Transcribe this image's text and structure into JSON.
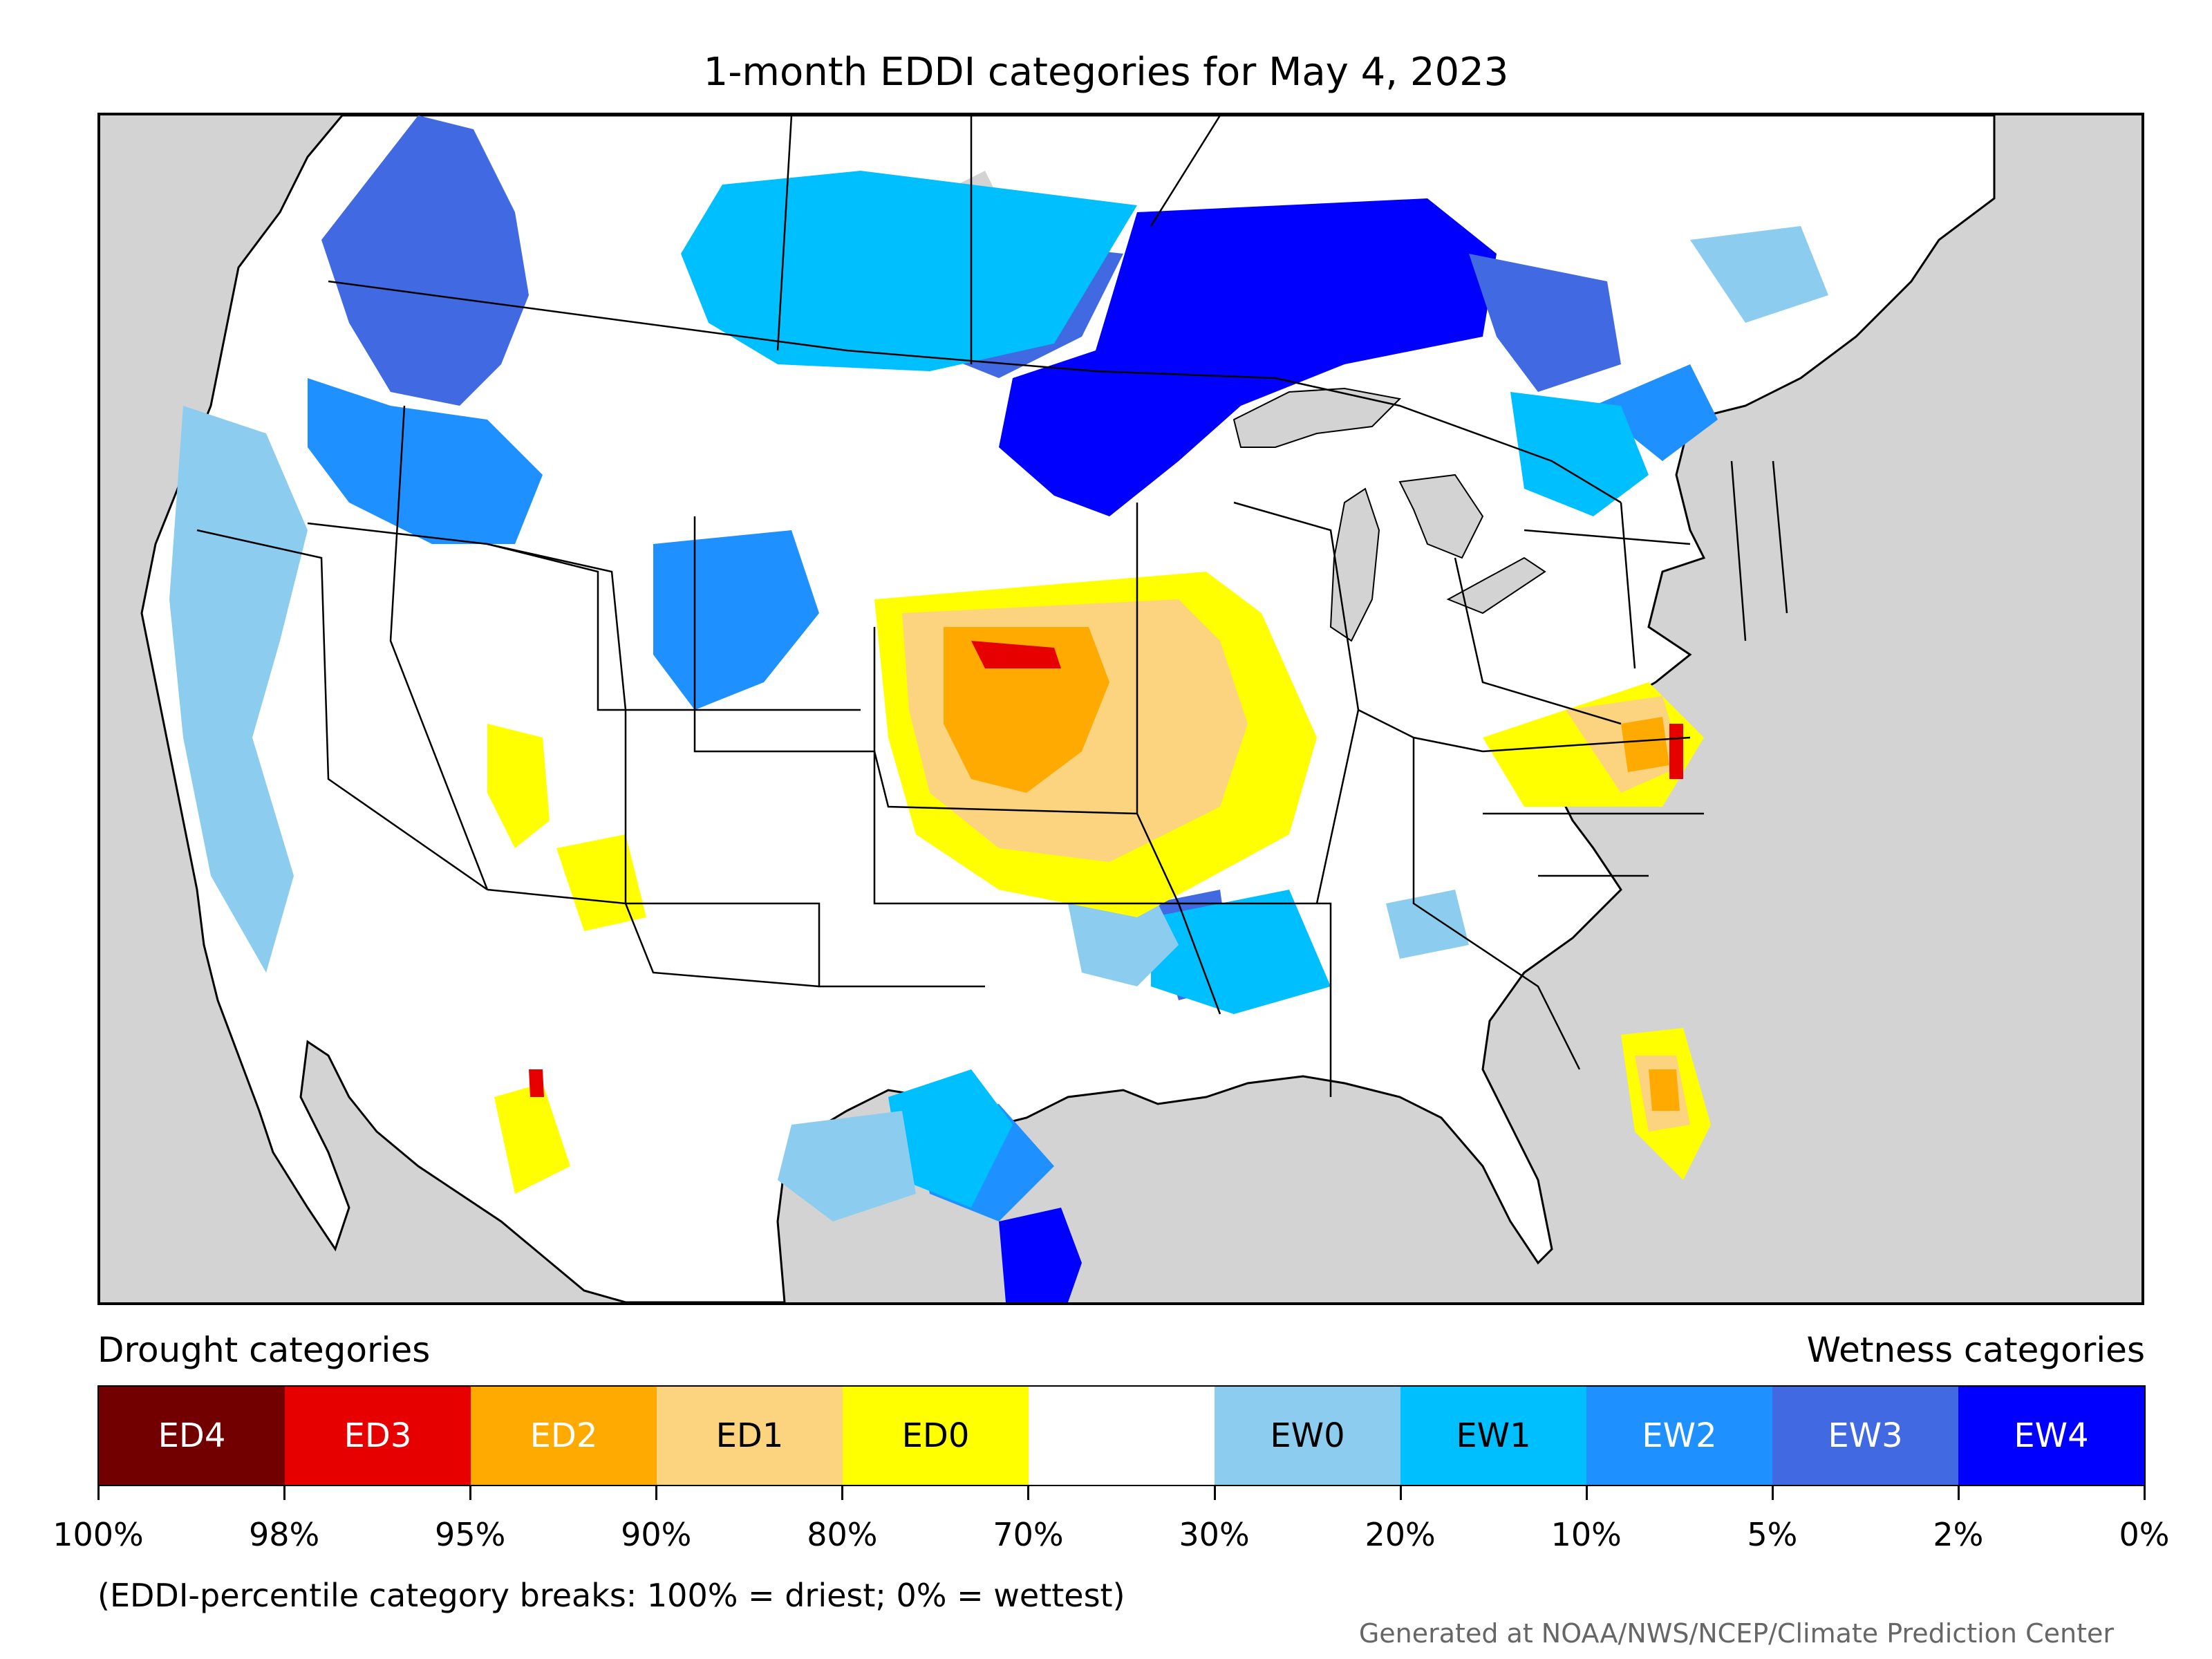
{
  "title": "1-month EDDI categories for May 4, 2023",
  "legend": {
    "drought_heading": "Drought categories",
    "wetness_heading": "Wetness categories",
    "categories": [
      {
        "label": "ED4",
        "color": "#730000",
        "text_color": "#ffffff"
      },
      {
        "label": "ED3",
        "color": "#e60000",
        "text_color": "#ffffff"
      },
      {
        "label": "ED2",
        "color": "#ffaa00",
        "text_color": "#ffffff"
      },
      {
        "label": "ED1",
        "color": "#fcd37f",
        "text_color": "#000000"
      },
      {
        "label": "ED0",
        "color": "#ffff00",
        "text_color": "#000000"
      },
      {
        "label": "",
        "color": "#ffffff",
        "text_color": "#000000"
      },
      {
        "label": "EW0",
        "color": "#8ccdef",
        "text_color": "#000000"
      },
      {
        "label": "EW1",
        "color": "#00bfff",
        "text_color": "#000000"
      },
      {
        "label": "EW2",
        "color": "#1e90ff",
        "text_color": "#ffffff"
      },
      {
        "label": "EW3",
        "color": "#4169e1",
        "text_color": "#ffffff"
      },
      {
        "label": "EW4",
        "color": "#0000ff",
        "text_color": "#ffffff"
      }
    ],
    "breaks": [
      "100%",
      "98%",
      "95%",
      "90%",
      "80%",
      "70%",
      "30%",
      "20%",
      "10%",
      "5%",
      "2%",
      "0%"
    ]
  },
  "note": "(EDDI-percentile category breaks: 100% = driest; 0% = wettest)",
  "credit": "Generated at NOAA/NWS/NCEP/Climate Prediction Center",
  "map": {
    "land_color": "#ffffff",
    "water_color": "#d3d3d3",
    "border_color": "#000000"
  }
}
